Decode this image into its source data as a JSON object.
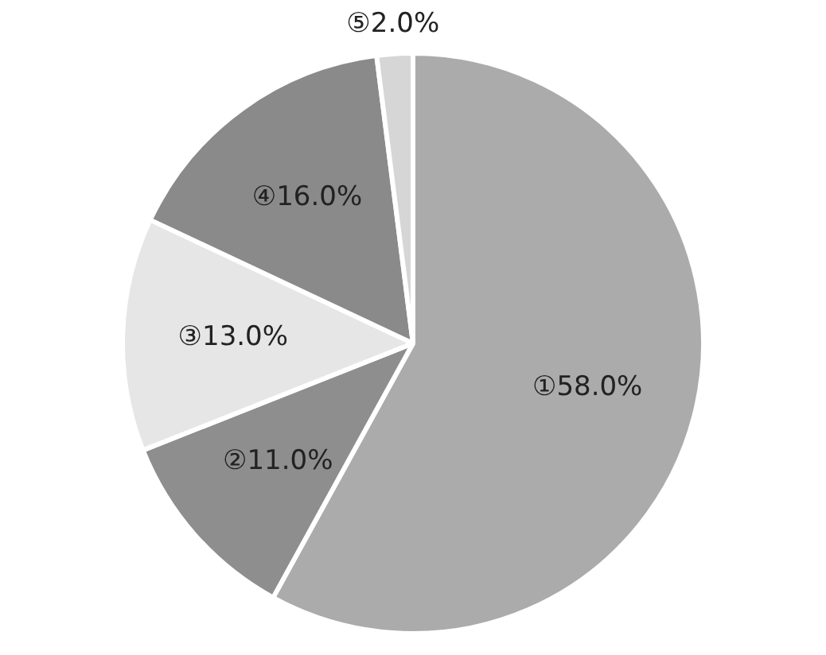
{
  "chart_data": {
    "type": "pie",
    "categories": [
      "①",
      "②",
      "③",
      "④",
      "⑤"
    ],
    "values": [
      58,
      11,
      13,
      16,
      2
    ],
    "value_labels": [
      "58.0%",
      "11.0%",
      "13.0%",
      "16.0%",
      "2.0%"
    ],
    "colors": [
      "#ababab",
      "#8e8e8e",
      "#e6e6e6",
      "#8a8a8a",
      "#d6d6d6"
    ],
    "legend": false
  }
}
